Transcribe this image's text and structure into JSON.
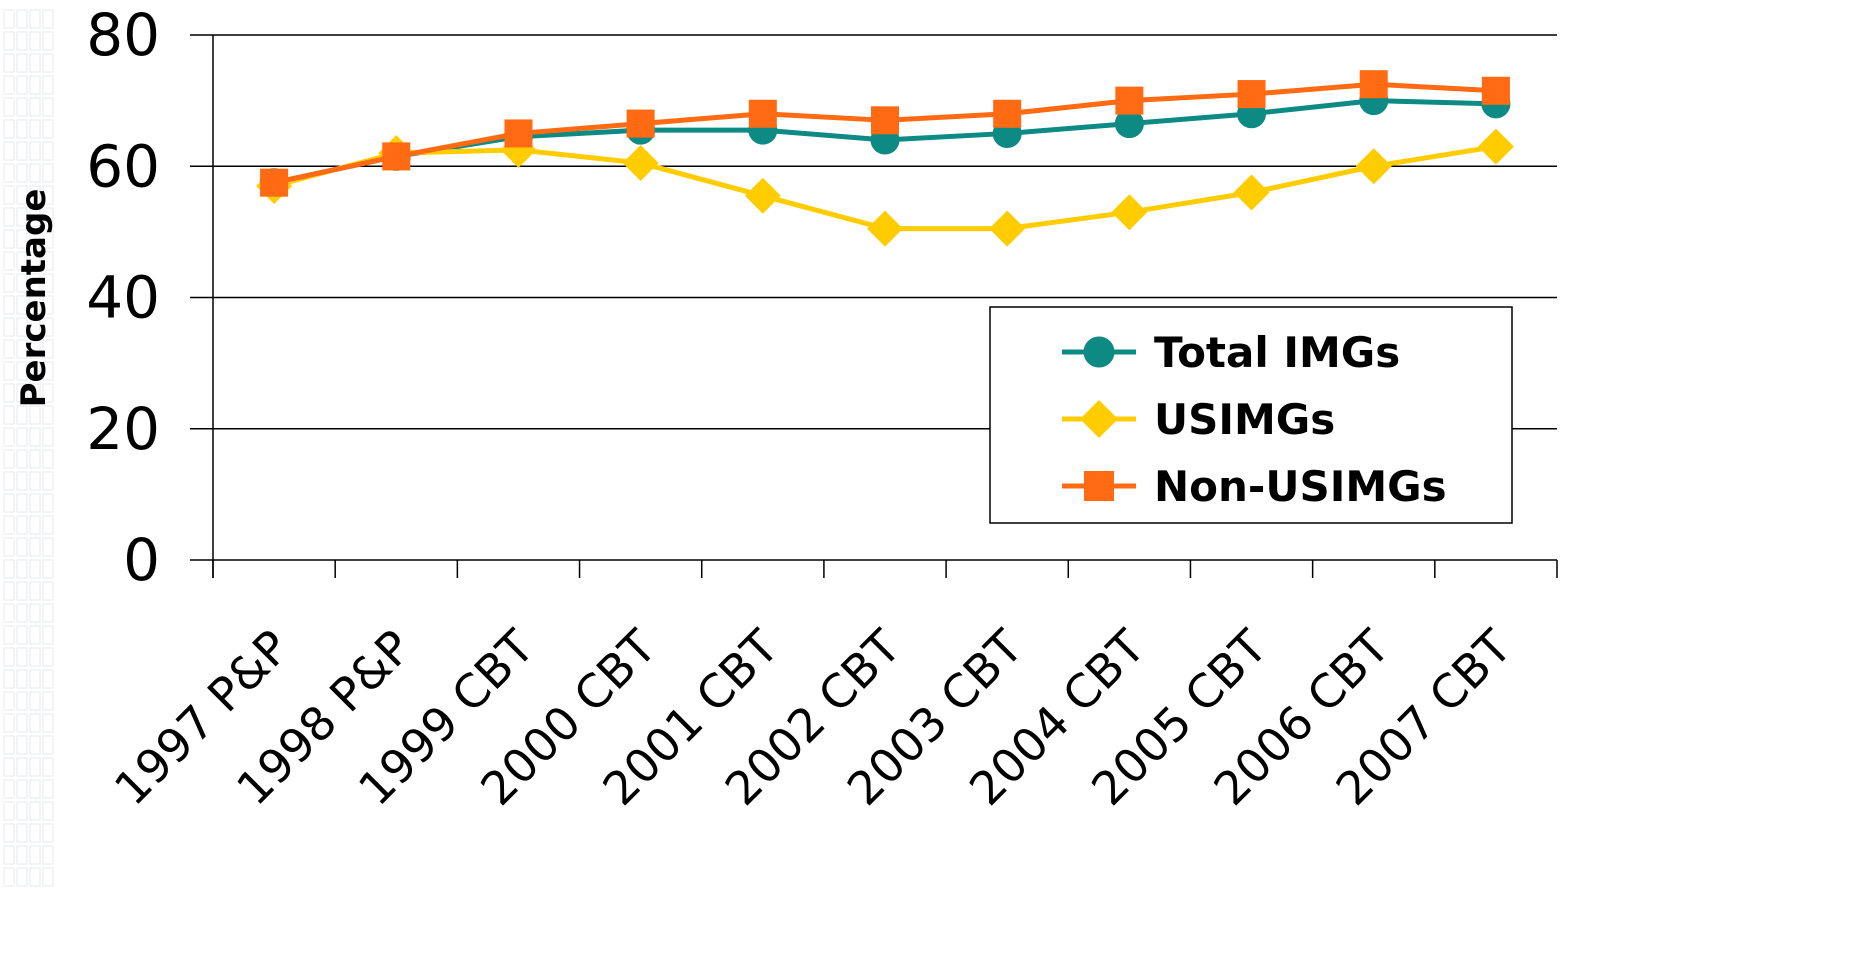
{
  "chart_data": {
    "type": "line",
    "title": "",
    "xlabel": "",
    "ylabel": "Percentage",
    "ylim": [
      0,
      80
    ],
    "yticks": [
      0,
      20,
      40,
      60,
      80
    ],
    "grid": "horizontal",
    "legend_position": "right",
    "categories": [
      "1997 P&P",
      "1998 P&P",
      "1999 CBT",
      "2000 CBT",
      "2001 CBT",
      "2002 CBT",
      "2003 CBT",
      "2004 CBT",
      "2005 CBT",
      "2006 CBT",
      "2007 CBT"
    ],
    "series": [
      {
        "name": "Total IMGs",
        "color": "#0e8a85",
        "marker": "circle",
        "values": [
          57.5,
          61.5,
          64.5,
          65.5,
          65.5,
          64,
          65,
          66.5,
          68,
          70,
          69.5
        ]
      },
      {
        "name": "USIMGs",
        "color": "#ffcc00",
        "marker": "diamond",
        "values": [
          57,
          62,
          62.5,
          60.5,
          55.5,
          50.5,
          50.5,
          53,
          56,
          60,
          63
        ]
      },
      {
        "name": "Non-USIMGs",
        "color": "#ff6a13",
        "marker": "square",
        "values": [
          57.5,
          61.5,
          65,
          66.5,
          68,
          67,
          68,
          70,
          71,
          72.5,
          71.5
        ]
      }
    ]
  }
}
